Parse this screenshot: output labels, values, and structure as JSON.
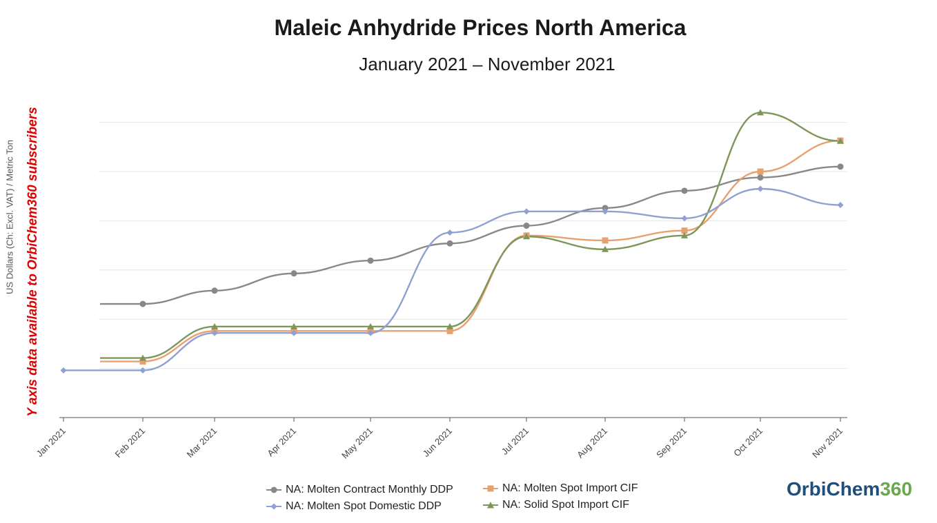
{
  "header": {
    "title": "Maleic Anhydride Prices North America",
    "subtitle": "January 2021 – November 2021"
  },
  "notice": "Y axis data available to OrbiChem360 subscribers",
  "logo": {
    "part1": "OrbiChem",
    "part2": "360"
  },
  "chart_data": {
    "type": "line",
    "title": "Maleic Anhydride Prices North America",
    "subtitle": "January 2021 – November 2021",
    "ylabel": "US Dollars (Ch: Excl. VAT) / Metric Ton",
    "xlabel": "",
    "y_scale": "relative (tick values hidden)",
    "ylim": [
      0,
      6
    ],
    "yticks": [
      1,
      2,
      3,
      4,
      5,
      6
    ],
    "grid": true,
    "legend_position": "bottom",
    "categories": [
      "Jan 2021",
      "Feb 2021",
      "Mar 2021",
      "Apr 2021",
      "May 2021",
      "Jun 2021",
      "Jul 2021",
      "Aug 2021",
      "Sep 2021",
      "Oct 2021",
      "Nov 2021"
    ],
    "series": [
      {
        "name": "NA: Molten Contract Monthly DDP",
        "color": "#888888",
        "marker": "circle",
        "values": [
          null,
          2.31,
          2.58,
          2.93,
          3.19,
          3.54,
          3.9,
          4.26,
          4.61,
          4.88,
          5.1
        ]
      },
      {
        "name": "NA: Molten Spot Domestic DDP",
        "color": "#8ea0d4",
        "marker": "diamond",
        "values": [
          0.96,
          0.96,
          1.72,
          1.72,
          1.72,
          3.76,
          4.19,
          4.19,
          4.05,
          4.65,
          4.32
        ]
      },
      {
        "name": "NA: Molten Spot Import CIF",
        "color": "#e8a06e",
        "marker": "square",
        "values": [
          null,
          1.14,
          1.76,
          1.76,
          1.76,
          1.76,
          3.7,
          3.6,
          3.8,
          5.0,
          5.63
        ]
      },
      {
        "name": "NA: Solid Spot Import CIF",
        "color": "#7e9659",
        "marker": "triangle",
        "values": [
          null,
          1.21,
          1.85,
          1.85,
          1.85,
          1.85,
          3.68,
          3.42,
          3.7,
          6.2,
          5.62
        ]
      }
    ]
  }
}
